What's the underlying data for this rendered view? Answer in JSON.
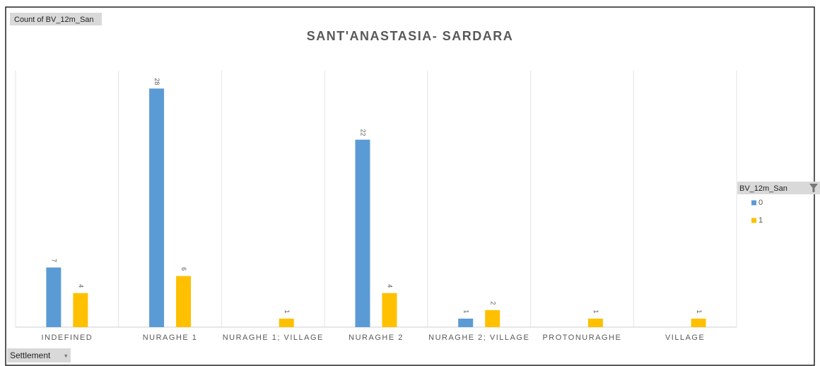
{
  "chart_data": {
    "type": "bar",
    "title": "SANT'ANASTASIA- SARDARA",
    "value_field": "Count of BV_12m_San",
    "axis_field": "Settlement",
    "legend_title": "BV_12m_San",
    "categories": [
      "INDEFINED",
      "NURAGHE 1",
      "NURAGHE 1; VILLAGE",
      "NURAGHE 2",
      "NURAGHE 2; VILLAGE",
      "PROTONURAGHE",
      "VILLAGE"
    ],
    "series": [
      {
        "name": "0",
        "color": "#5b9bd5",
        "values": [
          7,
          28,
          null,
          22,
          1,
          null,
          null
        ]
      },
      {
        "name": "1",
        "color": "#ffc000",
        "values": [
          4,
          6,
          1,
          4,
          2,
          1,
          1
        ]
      }
    ],
    "legend": "right",
    "grid": true
  }
}
